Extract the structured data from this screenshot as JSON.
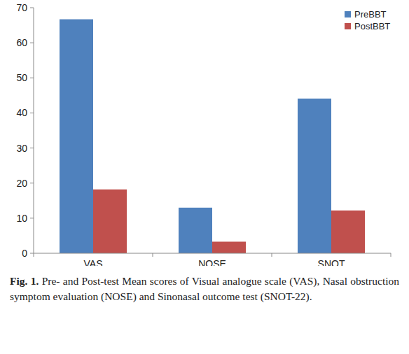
{
  "chart_data": {
    "type": "bar",
    "categories": [
      "VAS",
      "NOSE",
      "SNOT"
    ],
    "series": [
      {
        "name": "PreBBT",
        "color": "#4f81bd",
        "values": [
          66.7,
          13.0,
          44.1
        ]
      },
      {
        "name": "PostBBT",
        "color": "#c0504d",
        "values": [
          18.2,
          3.3,
          12.2
        ]
      }
    ],
    "ylim": [
      0,
      70
    ],
    "yticks": [
      0,
      10,
      20,
      30,
      40,
      50,
      60,
      70
    ],
    "grid": false,
    "legend": "upper right",
    "figure_label": "Fig. 1.",
    "caption": "Pre- and Post-test Mean scores of Visual analogue scale (VAS), Nasal obstruction symptom evaluation (NOSE) and Sinonasal outcome test (SNOT-22)."
  }
}
